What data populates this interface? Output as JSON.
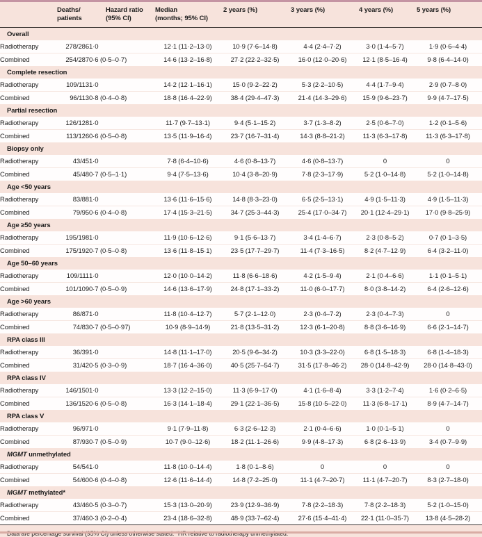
{
  "table": {
    "columns": [
      {
        "label": ""
      },
      {
        "label": "Deaths/\npatients"
      },
      {
        "label": "Hazard ratio\n(95% CI)"
      },
      {
        "label": "Median\n(months; 95% CI)"
      },
      {
        "label": "2 years (%)"
      },
      {
        "label": "3 years (%)"
      },
      {
        "label": "4 years (%)"
      },
      {
        "label": "5 years (%)"
      }
    ],
    "sections": [
      {
        "title_em": "",
        "title": "Overall",
        "rows": [
          {
            "label": "Radiotherapy",
            "values": [
              "278/286",
              "1·0",
              "12·1 (11·2–13·0)",
              "10·9 (7·6–14·8)",
              "4·4 (2·4–7·2)",
              "3·0 (1·4–5·7)",
              "1·9 (0·6–4·4)"
            ]
          },
          {
            "label": "Combined",
            "values": [
              "254/287",
              "0·6 (0·5–0·7)",
              "14·6 (13·2–16·8)",
              "27·2 (22·2–32·5)",
              "16·0 (12·0–20·6)",
              "12·1 (8·5–16·4)",
              "9·8 (6·4–14·0)"
            ]
          }
        ]
      },
      {
        "title_em": "",
        "title": "Complete resection",
        "rows": [
          {
            "label": "Radiotherapy",
            "values": [
              "109/113",
              "1·0",
              "14·2 (12·1–16·1)",
              "15·0 (9·2–22·2)",
              "5·3 (2·2–10·5)",
              "4·4 (1·7–9·4)",
              "2·9 (0·7–8·0)"
            ]
          },
          {
            "label": "Combined",
            "values": [
              "96/113",
              "0·8 (0·4–0·8)",
              "18·8 (16·4–22·9)",
              "38·4 (29·4–47·3)",
              "21·4 (14·3–29·6)",
              "15·9 (9·6–23·7)",
              "9·9 (4·7–17·5)"
            ]
          }
        ]
      },
      {
        "title_em": "",
        "title": "Partial resection",
        "rows": [
          {
            "label": "Radiotherapy",
            "values": [
              "126/128",
              "1·0",
              "11·7 (9·7–13·1)",
              "9·4 (5·1–15·2)",
              "3·7 (1·3–8·2)",
              "2·5 (0·6–7·0)",
              "1·2 (0·1–5·6)"
            ]
          },
          {
            "label": "Combined",
            "values": [
              "113/126",
              "0·6 (0·5–0·8)",
              "13·5 (11·9–16·4)",
              "23·7 (16·7–31·4)",
              "14·3 (8·8–21·2)",
              "11·3 (6·3–17·8)",
              "11·3 (6·3–17·8)"
            ]
          }
        ]
      },
      {
        "title_em": "",
        "title": "Biopsy only",
        "rows": [
          {
            "label": "Radiotherapy",
            "values": [
              "43/45",
              "1·0",
              "7·8 (6·4–10·6)",
              "4·6 (0·8–13·7)",
              "4·6 (0·8–13·7)",
              "0",
              "0"
            ]
          },
          {
            "label": "Combined",
            "values": [
              "45/48",
              "0·7 (0·5–1·1)",
              "9·4 (7·5–13·6)",
              "10·4 (3·8–20·9)",
              "7·8 (2·3–17·9)",
              "5·2 (1·0–14·8)",
              "5·2 (1·0–14·8)"
            ]
          }
        ]
      },
      {
        "title_em": "",
        "title": "Age <50 years",
        "rows": [
          {
            "label": "Radiotherapy",
            "values": [
              "83/88",
              "1·0",
              "13·6 (11·6–15·6)",
              "14·8 (8·3–23·0)",
              "6·5 (2·5–13·1)",
              "4·9 (1·5–11·3)",
              "4·9 (1·5–11·3)"
            ]
          },
          {
            "label": "Combined",
            "values": [
              "79/95",
              "0·6 (0·4–0·8)",
              "17·4 (15·3–21·5)",
              "34·7 (25·3–44·3)",
              "25·4 (17·0–34·7)",
              "20·1 (12·4–29·1)",
              "17·0 (9·8–25·9)"
            ]
          }
        ]
      },
      {
        "title_em": "",
        "title": "Age ≥50 years",
        "rows": [
          {
            "label": "Radiotherapy",
            "values": [
              "195/198",
              "1·0",
              "11·9 (10·6–12·6)",
              "9·1 (5·6–13·7)",
              "3·4 (1·4–6·7)",
              "2·3 (0·8–5·2)",
              "0·7 (0·1–3·5)"
            ]
          },
          {
            "label": "Combined",
            "values": [
              "175/192",
              "0·7 (0·5–0·8)",
              "13·6 (11·8–15·1)",
              "23·5 (17·7–29·7)",
              "11·4 (7·3–16·5)",
              "8·2 (4·7–12·9)",
              "6·4 (3·2–11·0)"
            ]
          }
        ]
      },
      {
        "title_em": "",
        "title": "Age 50–60 years",
        "rows": [
          {
            "label": "Radiotherapy",
            "values": [
              "109/111",
              "1·0",
              "12·0 (10·0–14·2)",
              "11·8 (6·6–18·6)",
              "4·2 (1·5–9·4)",
              "2·1 (0·4–6·6)",
              "1·1 (0·1–5·1)"
            ]
          },
          {
            "label": "Combined",
            "values": [
              "101/109",
              "0·7 (0·5–0·9)",
              "14·6 (13·6–17·9)",
              "24·8 (17·1–33·2)",
              "11·0 (6·0–17·7)",
              "8·0 (3·8–14·2)",
              "6·4 (2·6–12·6)"
            ]
          }
        ]
      },
      {
        "title_em": "",
        "title": "Age >60 years",
        "rows": [
          {
            "label": "Radiotherapy",
            "values": [
              "86/87",
              "1·0",
              "11·8 (10·4–12·7)",
              "5·7 (2·1–12·0)",
              "2·3 (0·4–7·2)",
              "2·3 (0·4–7·3)",
              "0"
            ]
          },
          {
            "label": "Combined",
            "values": [
              "74/83",
              "0·7 (0·5–0·97)",
              "10·9 (8·9–14·9)",
              "21·8 (13·5–31·2)",
              "12·3 (6·1–20·8)",
              "8·8 (3·6–16·9)",
              "6·6 (2·1–14·7)"
            ]
          }
        ]
      },
      {
        "title_em": "",
        "title": "RPA class III",
        "rows": [
          {
            "label": "Radiotherapy",
            "values": [
              "36/39",
              "1·0",
              "14·8 (11·1–17·0)",
              "20·5 (9·6–34·2)",
              "10·3 (3·3–22·0)",
              "6·8 (1·5–18·3)",
              "6·8 (1·4–18·3)"
            ]
          },
          {
            "label": "Combined",
            "values": [
              "31/42",
              "0·5 (0·3–0·9)",
              "18·7 (16·4–36·0)",
              "40·5 (25·7–54·7)",
              "31·5 (17·8–46·2)",
              "28·0 (14·8–42·9)",
              "28·0 (14·8–43·0)"
            ]
          }
        ]
      },
      {
        "title_em": "",
        "title": "RPA class IV",
        "rows": [
          {
            "label": "Radiotherapy",
            "values": [
              "146/150",
              "1·0",
              "13·3 (12·2–15·0)",
              "11·3 (6·9–17·0)",
              "4·1 (1·6–8·4)",
              "3·3 (1·2–7·4)",
              "1·6 (0·2–6·5)"
            ]
          },
          {
            "label": "Combined",
            "values": [
              "136/152",
              "0·6 (0·5–0·8)",
              "16·3 (14·1–18·4)",
              "29·1 (22·1–36·5)",
              "15·8 (10·5–22·0)",
              "11·3 (6·8–17·1)",
              "8·9 (4·7–14·7)"
            ]
          }
        ]
      },
      {
        "title_em": "",
        "title": "RPA class V",
        "rows": [
          {
            "label": "Radiotherapy",
            "values": [
              "96/97",
              "1·0",
              "9·1 (7·9–11·8)",
              "6·3 (2·6–12·3)",
              "2·1 (0·4–6·6)",
              "1·0 (0·1–5·1)",
              "0"
            ]
          },
          {
            "label": "Combined",
            "values": [
              "87/93",
              "0·7 (0·5–0·9)",
              "10·7 (9·0–12·6)",
              "18·2 (11·1–26·6)",
              "9·9 (4·8–17·3)",
              "6·8 (2·6–13·9)",
              "3·4 (0·7–9·9)"
            ]
          }
        ]
      },
      {
        "title_em": "MGMT",
        "title": " unmethylated",
        "rows": [
          {
            "label": "Radiotherapy",
            "values": [
              "54/54",
              "1·0",
              "11·8 (10·0–14·4)",
              "1·8 (0·1–8·6)",
              "0",
              "0",
              "0"
            ]
          },
          {
            "label": "Combined",
            "values": [
              "54/60",
              "0·6 (0·4–0·8)",
              "12·6 (11·6–14·4)",
              "14·8 (7·2–25·0)",
              "11·1 (4·7–20·7)",
              "11·1 (4·7–20·7)",
              "8·3 (2·7–18·0)"
            ]
          }
        ]
      },
      {
        "title_em": "MGMT",
        "title": " methylated*",
        "rows": [
          {
            "label": "Radiotherapy",
            "values": [
              "43/46",
              "0·5 (0·3–0·7)",
              "15·3 (13·0–20·9)",
              "23·9 (12·9–36·9)",
              "7·8 (2·2–18·3)",
              "7·8 (2·2–18·3)",
              "5·2 (1·0–15·0)"
            ]
          },
          {
            "label": "Combined",
            "values": [
              "37/46",
              "0·3 (0·2–0·4)",
              "23·4 (18·6–32·8)",
              "48·9 (33·7–62·4)",
              "27·6 (15·4–41·4)",
              "22·1 (11·0–35·7)",
              "13·8 (4·5–28·2)"
            ]
          }
        ]
      }
    ],
    "footnote": "Data are percentage survival (95% CI) unless otherwise stated. *HR relative to radiotherapy unmethylated."
  }
}
